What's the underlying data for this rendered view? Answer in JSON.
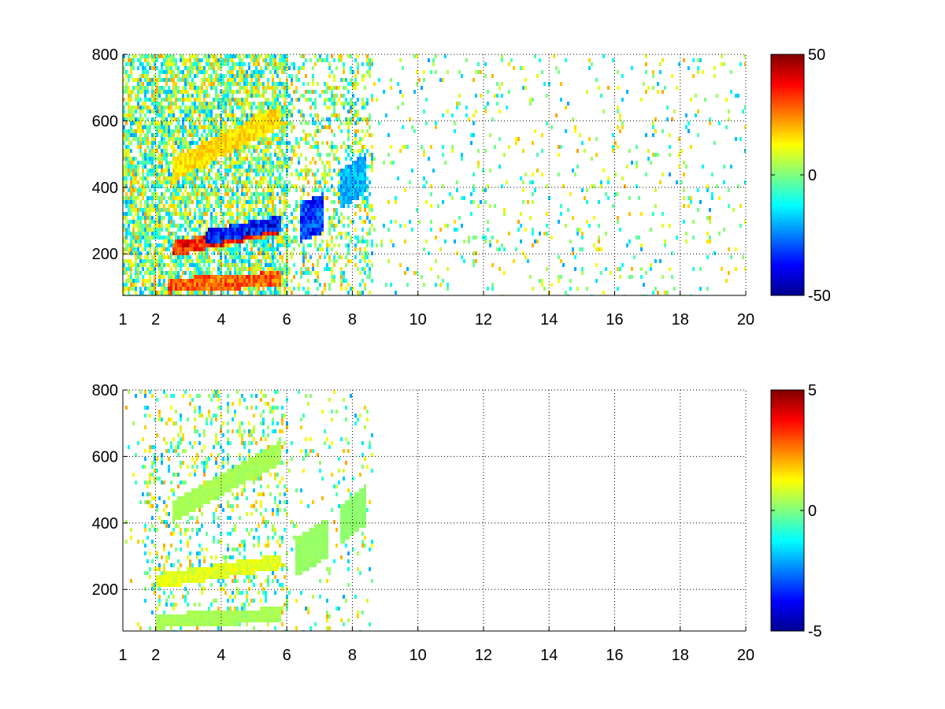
{
  "chart_data": [
    {
      "type": "heatmap",
      "title": "",
      "xlabel": "",
      "ylabel": "",
      "xlim": [
        1,
        20
      ],
      "ylim": [
        75,
        800
      ],
      "grid": true,
      "xticks": [
        1,
        2,
        4,
        6,
        8,
        10,
        12,
        14,
        16,
        18,
        20
      ],
      "xtick_labels": [
        "1",
        "2",
        "4",
        "6",
        "8",
        "10",
        "12",
        "14",
        "16",
        "18",
        "20"
      ],
      "yticks": [
        200,
        400,
        600,
        800
      ],
      "ytick_labels": [
        "200",
        "400",
        "600",
        "800"
      ],
      "colorbar": {
        "colormap": "jet",
        "range": [
          -50,
          50
        ],
        "ticks": [
          50,
          0,
          -50
        ],
        "tick_labels": [
          "50",
          "0",
          "-50"
        ]
      },
      "features": [
        {
          "band": "lower",
          "x_range": [
            2.3,
            5.8
          ],
          "y_start": 110,
          "y_end": 130,
          "value": 35
        },
        {
          "band": "strong",
          "x_range": [
            2.5,
            5.8
          ],
          "y_start": 220,
          "y_end": 290,
          "value": 45
        },
        {
          "band": "strong-negative",
          "x_range": [
            3.5,
            5.8
          ],
          "y_start": 255,
          "y_end": 300,
          "value": -45
        },
        {
          "band": "upper",
          "x_range": [
            2.5,
            5.8
          ],
          "y_start": 460,
          "y_end": 620,
          "value": 20
        },
        {
          "band": "cluster",
          "x_range": [
            6.4,
            7.1
          ],
          "y_start": 300,
          "y_end": 330,
          "value": -40
        },
        {
          "band": "cluster",
          "x_range": [
            7.6,
            8.4
          ],
          "y_start": 400,
          "y_end": 450,
          "value": -25
        }
      ]
    },
    {
      "type": "heatmap",
      "title": "",
      "xlabel": "",
      "ylabel": "",
      "xlim": [
        1,
        20
      ],
      "ylim": [
        75,
        800
      ],
      "grid": true,
      "xticks": [
        1,
        2,
        4,
        6,
        8,
        10,
        12,
        14,
        16,
        18,
        20
      ],
      "xtick_labels": [
        "1",
        "2",
        "4",
        "6",
        "8",
        "10",
        "12",
        "14",
        "16",
        "18",
        "20"
      ],
      "yticks": [
        200,
        400,
        600,
        800
      ],
      "ytick_labels": [
        "200",
        "400",
        "600",
        "800"
      ],
      "colorbar": {
        "colormap": "jet",
        "range": [
          -5,
          5
        ],
        "ticks": [
          5,
          0,
          -5
        ],
        "tick_labels": [
          "5",
          "0",
          "-5"
        ]
      },
      "features": [
        {
          "band": "lower",
          "x_range": [
            2.0,
            5.8
          ],
          "y_start": 110,
          "y_end": 130,
          "value": 0.5
        },
        {
          "band": "strong",
          "x_range": [
            2.0,
            5.8
          ],
          "y_start": 230,
          "y_end": 290,
          "value": 1.2
        },
        {
          "band": "upper",
          "x_range": [
            2.5,
            5.8
          ],
          "y_start": 440,
          "y_end": 620,
          "value": 0.5
        },
        {
          "band": "cluster",
          "x_range": [
            6.2,
            7.2
          ],
          "y_start": 300,
          "y_end": 360,
          "value": 0.3
        },
        {
          "band": "cluster",
          "x_range": [
            7.6,
            8.4
          ],
          "y_start": 400,
          "y_end": 460,
          "value": 0.2
        }
      ]
    }
  ]
}
